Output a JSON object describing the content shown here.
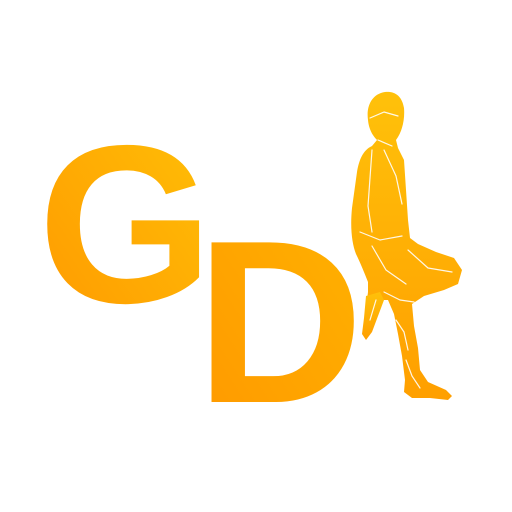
{
  "logo": {
    "letter_g": "G",
    "letter_d": "D",
    "figure_icon": "standing-person-icon",
    "colors": {
      "gradient_light": "#FFC107",
      "gradient_dark": "#FF9800",
      "background": "#FFFFFF",
      "figure_lines": "#FFFFFF"
    }
  }
}
